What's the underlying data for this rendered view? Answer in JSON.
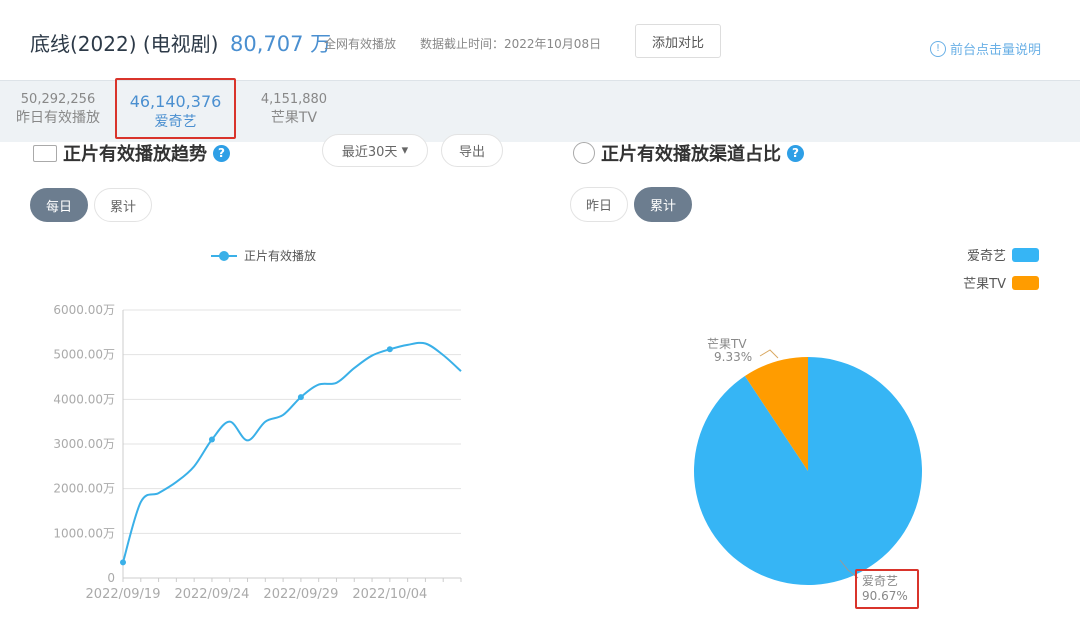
{
  "header": {
    "title": "底线(2022) (电视剧)",
    "total": "80,707 万",
    "total_label": "全网有效播放",
    "cutoff": "数据截止时间：2022年10月08日",
    "compare_button": "添加对比",
    "help_link": "前台点击量说明"
  },
  "stats": [
    {
      "value": "50,292,256",
      "label": "昨日有效播放"
    },
    {
      "value": "46,140,376",
      "label": "爱奇艺",
      "selected": true
    },
    {
      "value": "4,151,880",
      "label": "芒果TV"
    }
  ],
  "trend": {
    "title": "正片有效播放趋势",
    "range_select": "最近30天",
    "export_button": "导出",
    "tabs": [
      "每日",
      "累计"
    ],
    "active_tab": "每日"
  },
  "share": {
    "title": "正片有效播放渠道占比",
    "tabs": [
      "昨日",
      "累计"
    ],
    "active_tab": "累计"
  },
  "chart_data": [
    {
      "type": "line",
      "legend": "正片有效播放",
      "legend_position": "top",
      "grid": true,
      "x": [
        "2022/09/19",
        "2022/09/20",
        "2022/09/21",
        "2022/09/22",
        "2022/09/23",
        "2022/09/24",
        "2022/09/25",
        "2022/09/26",
        "2022/09/27",
        "2022/09/28",
        "2022/09/29",
        "2022/09/30",
        "2022/10/01",
        "2022/10/02",
        "2022/10/03",
        "2022/10/04",
        "2022/10/05",
        "2022/10/06",
        "2022/10/07",
        "2022/10/08"
      ],
      "x_tick_labels": [
        "2022/09/19",
        "2022/09/24",
        "2022/09/29",
        "2022/10/04"
      ],
      "y": [
        350,
        1700,
        1900,
        2150,
        2500,
        3100,
        3500,
        3080,
        3500,
        3650,
        4050,
        4330,
        4370,
        4700,
        4980,
        5120,
        5220,
        5250,
        4990,
        4630
      ],
      "y_unit": "万",
      "ylim": [
        0,
        6000
      ],
      "y_tick_labels": [
        "0",
        "1000.00万",
        "2000.00万",
        "3000.00万",
        "4000.00万",
        "5000.00万",
        "6000.00万"
      ],
      "color": "#3ab0e8"
    },
    {
      "type": "pie",
      "legend_position": "top-right",
      "slices": [
        {
          "name": "爱奇艺",
          "value": 90.67,
          "label": "90.67%",
          "color": "#36b5f5"
        },
        {
          "name": "芒果TV",
          "value": 9.33,
          "label": "9.33%",
          "color": "#ff9c00"
        }
      ]
    }
  ]
}
